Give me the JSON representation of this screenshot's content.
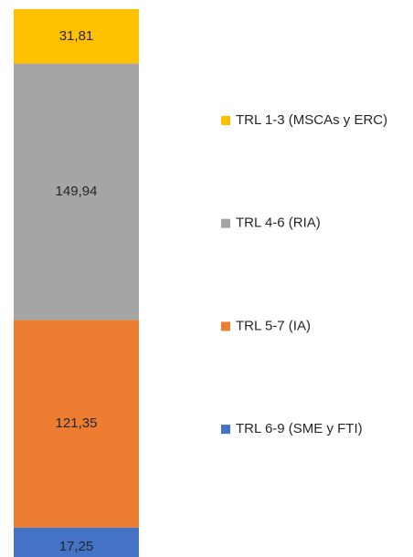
{
  "chart_data": {
    "type": "stacked_bar",
    "series": [
      {
        "name": "TRL 6-9 (SME y FTI)",
        "color": "#4472C4",
        "values": [
          17.25
        ],
        "value_labels": [
          "17,25"
        ]
      },
      {
        "name": "TRL 5-7 (IA)",
        "color": "#ED7D31",
        "values": [
          121.35
        ],
        "value_labels": [
          "121,35"
        ]
      },
      {
        "name": "TRL 4-6 (RIA)",
        "color": "#A5A5A5",
        "values": [
          149.94
        ],
        "value_labels": [
          "149,94"
        ]
      },
      {
        "name": "TRL 1-3 (MSCAs y ERC)",
        "color": "#FFC000",
        "values": [
          31.81
        ],
        "value_labels": [
          "31,81"
        ]
      }
    ]
  }
}
